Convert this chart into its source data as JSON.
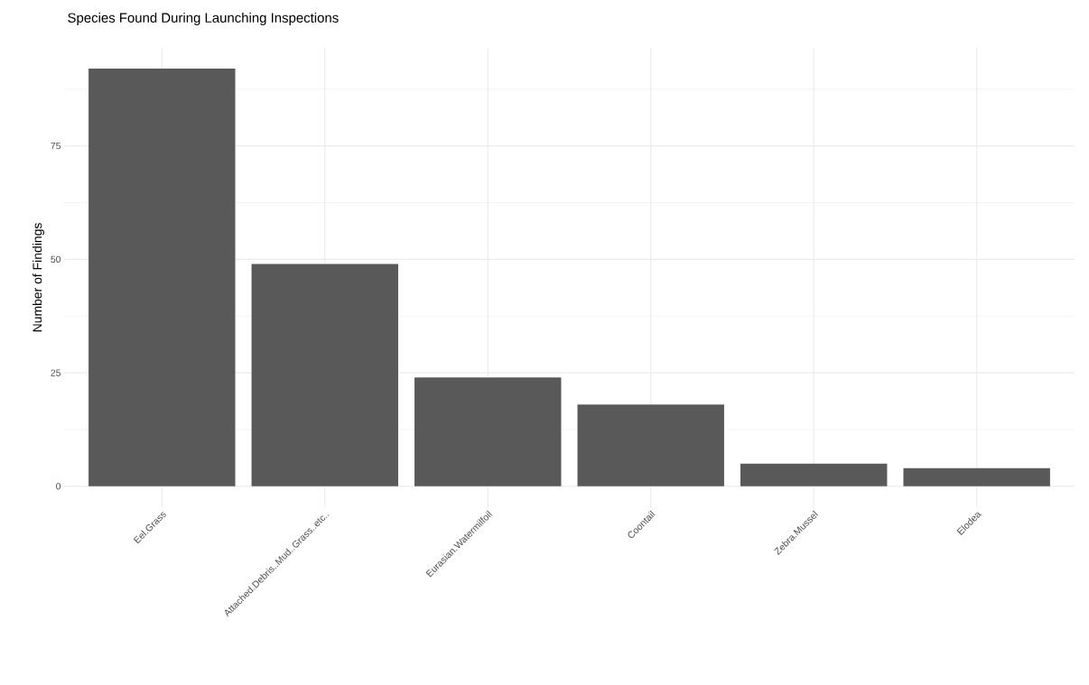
{
  "chart_data": {
    "type": "bar",
    "title": "Species Found During Launching Inspections",
    "ylabel": "Number of Findings",
    "categories": [
      "Eel.Grass",
      "Attached.Debris..Mud..Grass..etc..",
      "Eurasian.Watermilfoil",
      "Coontail",
      "Zebra.Mussel",
      "Elodea"
    ],
    "values": [
      92,
      49,
      24,
      18,
      5,
      4
    ],
    "color": "#595959",
    "ylim": [
      -4.6,
      96.6
    ],
    "yticks": [
      0,
      25,
      50,
      75
    ],
    "grid": true
  }
}
